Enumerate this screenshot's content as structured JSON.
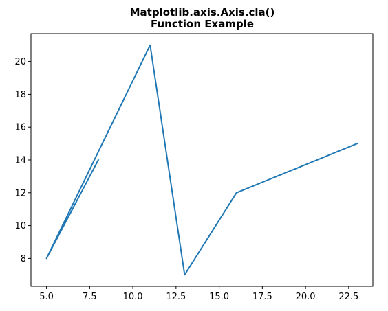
{
  "chart_data": {
    "type": "line",
    "title_lines": [
      "Matplotlib.axis.Axis.cla()",
      "Function Example"
    ],
    "xlabel": "",
    "ylabel": "",
    "xlim": [
      4.1,
      23.9
    ],
    "ylim": [
      6.3,
      21.7
    ],
    "xticks": [
      5.0,
      7.5,
      10.0,
      12.5,
      15.0,
      17.5,
      20.0,
      22.5
    ],
    "xtick_labels": [
      "5.0",
      "7.5",
      "10.0",
      "12.5",
      "15.0",
      "17.5",
      "20.0",
      "22.5"
    ],
    "yticks": [
      8,
      10,
      12,
      14,
      16,
      18,
      20
    ],
    "ytick_labels": [
      "8",
      "10",
      "12",
      "14",
      "16",
      "18",
      "20"
    ],
    "grid": false,
    "series": [
      {
        "color": "#1f77b4",
        "x": [
          8,
          5,
          11,
          13,
          16,
          23
        ],
        "y": [
          14,
          8,
          21,
          7,
          12,
          15
        ]
      }
    ]
  }
}
